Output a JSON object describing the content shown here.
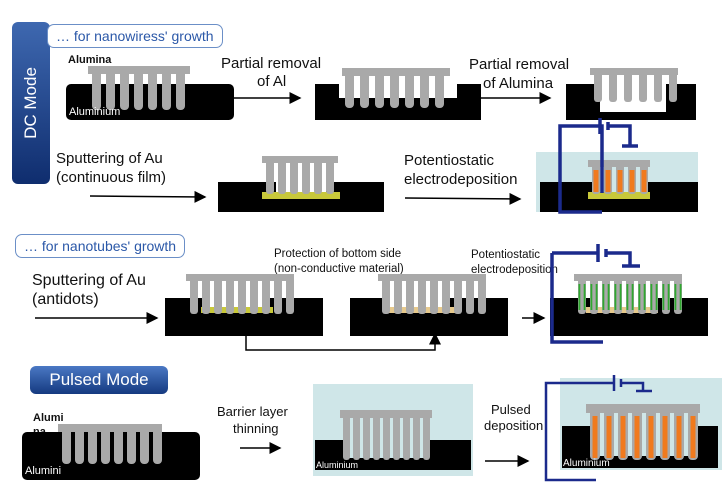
{
  "dc_mode": {
    "mode_label": "DC Mode",
    "nanowires_label": "… for nanowiress' growth",
    "step_partial_removal_al": [
      "Partial removal",
      "of Al"
    ],
    "step_partial_removal_alumina": [
      "Partial removal",
      "of Alumina"
    ],
    "label_alumina": "Alumina",
    "label_aluminium": "Aluminium",
    "step_sputtering": [
      "Sputtering of Au",
      "(continuous film)"
    ],
    "step_potentiostatic": [
      "Potentiostatic",
      "electrodeposition"
    ]
  },
  "nanotubes": {
    "nanotubes_label": "… for nanotubes' growth",
    "step_sputtering_antidots": [
      "Sputtering of Au",
      "(antidots)"
    ],
    "step_protection": [
      "Protection of bottom side",
      "(non-conductive material)"
    ],
    "step_potentiostatic": [
      "Potentiostatic",
      "electrodeposition"
    ]
  },
  "pulsed_mode": {
    "mode_label": "Pulsed Mode",
    "label_alumina_1": "Alumi",
    "label_alumina_2": "na",
    "label_aluminium_cut": "Alumini",
    "step_barrier": [
      "Barrier layer",
      "thinning"
    ],
    "label_aluminium_2": "Aluminium",
    "step_pulsed": [
      "Pulsed",
      "deposition"
    ],
    "label_aluminium_3": "Aluminium"
  },
  "colors": {
    "alumina": "#a9a9a9",
    "aluminium": "#000000",
    "gold": "#c8c83a",
    "nanowire_fill": "#f07a1e",
    "nanotube_fill": "#2fa82f",
    "circuit": "#1b2a8c",
    "electrolyte": "#cfe6e8",
    "mode_box": "#1e4a92",
    "label_border": "#6b8fc7"
  }
}
